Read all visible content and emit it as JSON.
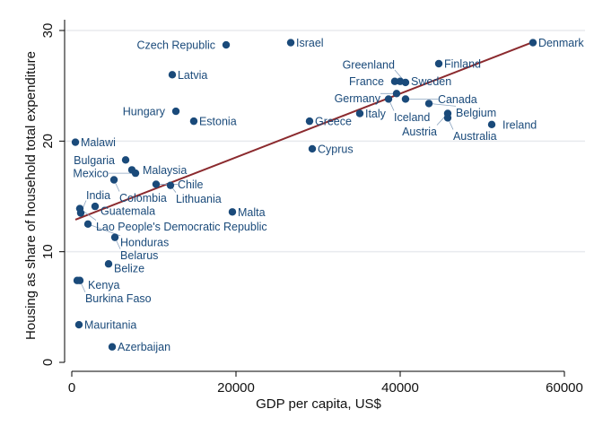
{
  "chart_data": {
    "type": "scatter",
    "xlabel": "GDP per capita, US$",
    "ylabel": "Housing as share of household total expenditure",
    "xlim": [
      0,
      60000
    ],
    "ylim": [
      0,
      30
    ],
    "xticks": [
      "0",
      "20000",
      "40000",
      "60000"
    ],
    "yticks": [
      "0",
      "10",
      "20",
      "30"
    ],
    "grid": "horizontal",
    "colors": {
      "points": "#1a4a7a",
      "fit": "#8b2a2e",
      "grid": "#e8eaee"
    },
    "points": [
      {
        "label": "Denmark",
        "x": 56170,
        "y": 28.9
      },
      {
        "label": "Israel",
        "x": 26670,
        "y": 28.9
      },
      {
        "label": "Czech Republic",
        "x": 18800,
        "y": 28.7
      },
      {
        "label": "Finland",
        "x": 44700,
        "y": 27.0
      },
      {
        "label": "Latvia",
        "x": 12240,
        "y": 26.0
      },
      {
        "label": "France",
        "x": 39340,
        "y": 25.4
      },
      {
        "label": "Sweden",
        "x": 40000,
        "y": 25.4
      },
      {
        "label": "Greenland",
        "x": 40650,
        "y": 25.3
      },
      {
        "label": "Germany",
        "x": 39560,
        "y": 24.3
      },
      {
        "label": "Iceland",
        "x": 38580,
        "y": 23.8
      },
      {
        "label": "Canada",
        "x": 40650,
        "y": 23.8
      },
      {
        "label": "Belgium",
        "x": 43500,
        "y": 23.4
      },
      {
        "label": "Hungary",
        "x": 12680,
        "y": 22.7
      },
      {
        "label": "Austria",
        "x": 45790,
        "y": 22.5
      },
      {
        "label": "Australia",
        "x": 45790,
        "y": 22.1
      },
      {
        "label": "Italy",
        "x": 35080,
        "y": 22.5
      },
      {
        "label": "Estonia",
        "x": 14860,
        "y": 21.8
      },
      {
        "label": "Greece",
        "x": 28960,
        "y": 21.8
      },
      {
        "label": "Ireland",
        "x": 51150,
        "y": 21.5
      },
      {
        "label": "Malawi",
        "x": 440,
        "y": 19.9
      },
      {
        "label": "Cyprus",
        "x": 29290,
        "y": 19.3
      },
      {
        "label": "Bulgaria",
        "x": 6560,
        "y": 18.3
      },
      {
        "label": "Malaysia",
        "x": 7320,
        "y": 17.4
      },
      {
        "label": "Mexico",
        "x": 7760,
        "y": 17.1
      },
      {
        "label": "Colombia",
        "x": 5140,
        "y": 16.5
      },
      {
        "label": "Chile",
        "x": 10270,
        "y": 16.1
      },
      {
        "label": "Lithuania",
        "x": 12020,
        "y": 16.0
      },
      {
        "label": "Guatemala",
        "x": 2840,
        "y": 14.1
      },
      {
        "label": "Lao People's Democratic Republic",
        "x": 980,
        "y": 13.9
      },
      {
        "label": "India",
        "x": 1090,
        "y": 13.5
      },
      {
        "label": "Malta",
        "x": 19560,
        "y": 13.6
      },
      {
        "label": "Honduras",
        "x": 1970,
        "y": 12.5
      },
      {
        "label": "Belarus",
        "x": 5250,
        "y": 11.3
      },
      {
        "label": "Belize",
        "x": 4480,
        "y": 8.9
      },
      {
        "label": "Kenya",
        "x": 660,
        "y": 7.4
      },
      {
        "label": "Burkina Faso",
        "x": 980,
        "y": 7.4
      },
      {
        "label": "Mauritania",
        "x": 870,
        "y": 3.4
      },
      {
        "label": "Azerbaijan",
        "x": 4920,
        "y": 1.4
      }
    ],
    "fit_line": {
      "x": [
        440,
        56170
      ],
      "y": [
        12.9,
        28.95
      ]
    }
  }
}
